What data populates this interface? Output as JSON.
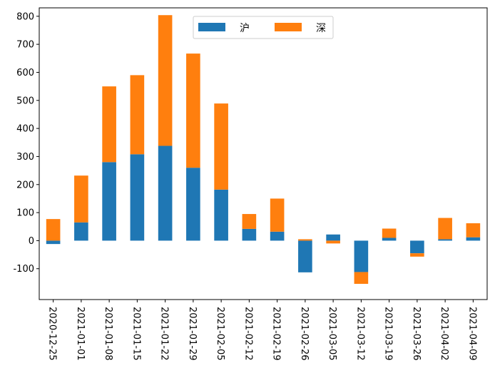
{
  "chart_data": {
    "type": "bar",
    "stacked": true,
    "title": "",
    "xlabel": "",
    "ylabel": "",
    "categories": [
      "2020-12-25",
      "2021-01-01",
      "2021-01-08",
      "2021-01-15",
      "2021-01-22",
      "2021-01-29",
      "2021-02-05",
      "2021-02-12",
      "2021-02-19",
      "2021-02-26",
      "2021-03-05",
      "2021-03-12",
      "2021-03-19",
      "2021-03-26",
      "2021-04-02",
      "2021-04-09"
    ],
    "series": [
      {
        "name": "沪",
        "color": "#1f77b4",
        "values": [
          -12,
          65,
          280,
          308,
          338,
          260,
          182,
          42,
          32,
          -113,
          22,
          -112,
          10,
          -45,
          5,
          12
        ]
      },
      {
        "name": "深",
        "color": "#ff7f0e",
        "values": [
          77,
          167,
          270,
          282,
          466,
          407,
          307,
          53,
          118,
          5,
          -10,
          -42,
          33,
          -12,
          76,
          50
        ]
      }
    ],
    "ylim": [
      -210,
      830
    ],
    "yticks": [
      -100,
      0,
      100,
      200,
      300,
      400,
      500,
      600,
      700,
      800
    ],
    "legend_position": "top-center"
  }
}
